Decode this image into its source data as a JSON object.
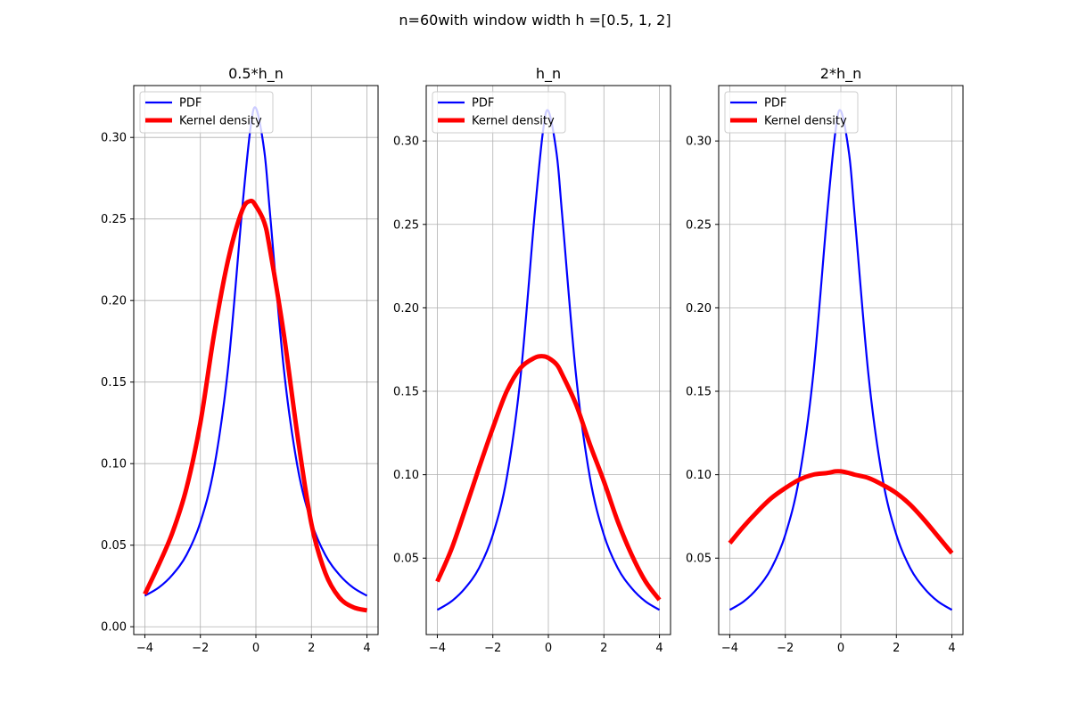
{
  "suptitle": "n=60with window width h =[0.5, 1, 2]",
  "colors": {
    "pdf": "#0000ff",
    "kde": "#ff0000",
    "grid": "#b0b0b0",
    "legend_border": "#cccccc"
  },
  "legend_position": "upper-left",
  "chart_data": [
    {
      "type": "line",
      "title": "0.5*h_n",
      "xlabel": "",
      "ylabel": "",
      "xlim": [
        -4.4,
        4.4
      ],
      "ylim": [
        -0.0048,
        0.3318
      ],
      "xticks": [
        -4,
        -2,
        0,
        2,
        4
      ],
      "xtick_labels": [
        "−4",
        "−2",
        "0",
        "2",
        "4"
      ],
      "yticks": [
        0.0,
        0.05,
        0.1,
        0.15,
        0.2,
        0.25,
        0.3
      ],
      "ytick_labels": [
        "0.00",
        "0.05",
        "0.10",
        "0.15",
        "0.20",
        "0.25",
        "0.30"
      ],
      "grid": true,
      "x": [
        -4,
        -3.5,
        -3,
        -2.5,
        -2,
        -1.5,
        -1,
        -0.5,
        -0.2,
        0,
        0.3,
        0.5,
        1,
        1.5,
        2,
        2.5,
        3,
        3.5,
        4
      ],
      "series": [
        {
          "name": "PDF",
          "values": [
            0.019,
            0.024,
            0.032,
            0.044,
            0.064,
            0.098,
            0.159,
            0.255,
            0.305,
            0.318,
            0.292,
            0.255,
            0.159,
            0.098,
            0.064,
            0.044,
            0.032,
            0.024,
            0.019
          ]
        },
        {
          "name": "Kernel density",
          "values": [
            0.02,
            0.038,
            0.058,
            0.085,
            0.125,
            0.18,
            0.225,
            0.255,
            0.261,
            0.258,
            0.248,
            0.232,
            0.18,
            0.117,
            0.063,
            0.033,
            0.018,
            0.012,
            0.01
          ]
        }
      ]
    },
    {
      "type": "line",
      "title": "h_n",
      "xlabel": "",
      "ylabel": "",
      "xlim": [
        -4.4,
        4.4
      ],
      "ylim": [
        0.0042,
        0.3332
      ],
      "xticks": [
        -4,
        -2,
        0,
        2,
        4
      ],
      "xtick_labels": [
        "−4",
        "−2",
        "0",
        "2",
        "4"
      ],
      "yticks": [
        0.05,
        0.1,
        0.15,
        0.2,
        0.25,
        0.3
      ],
      "ytick_labels": [
        "0.05",
        "0.10",
        "0.15",
        "0.20",
        "0.25",
        "0.30"
      ],
      "grid": true,
      "x": [
        -4,
        -3.5,
        -3,
        -2.5,
        -2,
        -1.5,
        -1,
        -0.5,
        -0.2,
        0,
        0.3,
        0.5,
        1,
        1.5,
        2,
        2.5,
        3,
        3.5,
        4
      ],
      "series": [
        {
          "name": "PDF",
          "values": [
            0.019,
            0.024,
            0.032,
            0.044,
            0.064,
            0.098,
            0.159,
            0.255,
            0.305,
            0.318,
            0.292,
            0.255,
            0.159,
            0.098,
            0.064,
            0.044,
            0.032,
            0.024,
            0.019
          ]
        },
        {
          "name": "Kernel density",
          "values": [
            0.036,
            0.055,
            0.079,
            0.104,
            0.128,
            0.15,
            0.164,
            0.17,
            0.171,
            0.17,
            0.166,
            0.16,
            0.142,
            0.118,
            0.096,
            0.072,
            0.052,
            0.036,
            0.025
          ]
        }
      ]
    },
    {
      "type": "line",
      "title": "2*h_n",
      "xlabel": "",
      "ylabel": "",
      "xlim": [
        -4.4,
        4.4
      ],
      "ylim": [
        0.0042,
        0.3332
      ],
      "xticks": [
        -4,
        -2,
        0,
        2,
        4
      ],
      "xtick_labels": [
        "−4",
        "−2",
        "0",
        "2",
        "4"
      ],
      "yticks": [
        0.05,
        0.1,
        0.15,
        0.2,
        0.25,
        0.3
      ],
      "ytick_labels": [
        "0.05",
        "0.10",
        "0.15",
        "0.20",
        "0.25",
        "0.30"
      ],
      "grid": true,
      "x": [
        -4,
        -3.5,
        -3,
        -2.5,
        -2,
        -1.5,
        -1,
        -0.5,
        -0.2,
        0,
        0.3,
        0.5,
        1,
        1.5,
        2,
        2.5,
        3,
        3.5,
        4
      ],
      "series": [
        {
          "name": "PDF",
          "values": [
            0.019,
            0.024,
            0.032,
            0.044,
            0.064,
            0.098,
            0.159,
            0.255,
            0.305,
            0.318,
            0.292,
            0.255,
            0.159,
            0.098,
            0.064,
            0.044,
            0.032,
            0.024,
            0.019
          ]
        },
        {
          "name": "Kernel density",
          "values": [
            0.059,
            0.069,
            0.078,
            0.086,
            0.092,
            0.097,
            0.1,
            0.101,
            0.102,
            0.102,
            0.101,
            0.1,
            0.098,
            0.094,
            0.089,
            0.082,
            0.073,
            0.063,
            0.053
          ]
        }
      ]
    }
  ]
}
